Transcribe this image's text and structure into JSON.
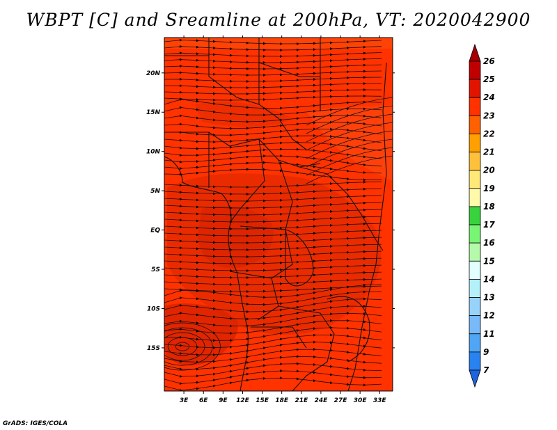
{
  "title": "WBPT [C] and Sreamline at 200hPa, VT: 2020042900",
  "footer": "GrADS: IGES/COLA",
  "chart_data": {
    "type": "heatmap",
    "variable": "WBPT [C]",
    "overlay": "streamline",
    "level": "200hPa",
    "valid_time": "2020042900",
    "x_range": [
      0,
      35
    ],
    "y_range": [
      -20.5,
      24.5
    ],
    "x_ticks": [
      3,
      6,
      9,
      12,
      15,
      18,
      21,
      24,
      27,
      30,
      33
    ],
    "x_tick_labels": [
      "3E",
      "6E",
      "9E",
      "12E",
      "15E",
      "18E",
      "21E",
      "24E",
      "27E",
      "30E",
      "33E"
    ],
    "y_ticks": [
      -15,
      -10,
      -5,
      0,
      5,
      10,
      15,
      20
    ],
    "y_tick_labels": [
      "15S",
      "10S",
      "5S",
      "EQ",
      "5N",
      "10N",
      "15N",
      "20N"
    ],
    "colorbar": {
      "labels": [
        "7",
        "9",
        "11",
        "12",
        "13",
        "14",
        "15",
        "16",
        "17",
        "18",
        "19",
        "20",
        "21",
        "22",
        "23",
        "24",
        "25",
        "26"
      ],
      "colors": [
        "#1e64dc",
        "#2882f0",
        "#50a5f5",
        "#78b9fa",
        "#96d2fa",
        "#b4f0fa",
        "#e1ffff",
        "#b4faaa",
        "#78f573",
        "#37d23c",
        "#fffaaa",
        "#ffe878",
        "#ffc03c",
        "#ffa000",
        "#ff6000",
        "#ff3200",
        "#e11400",
        "#c00000",
        "#a50000"
      ]
    }
  }
}
